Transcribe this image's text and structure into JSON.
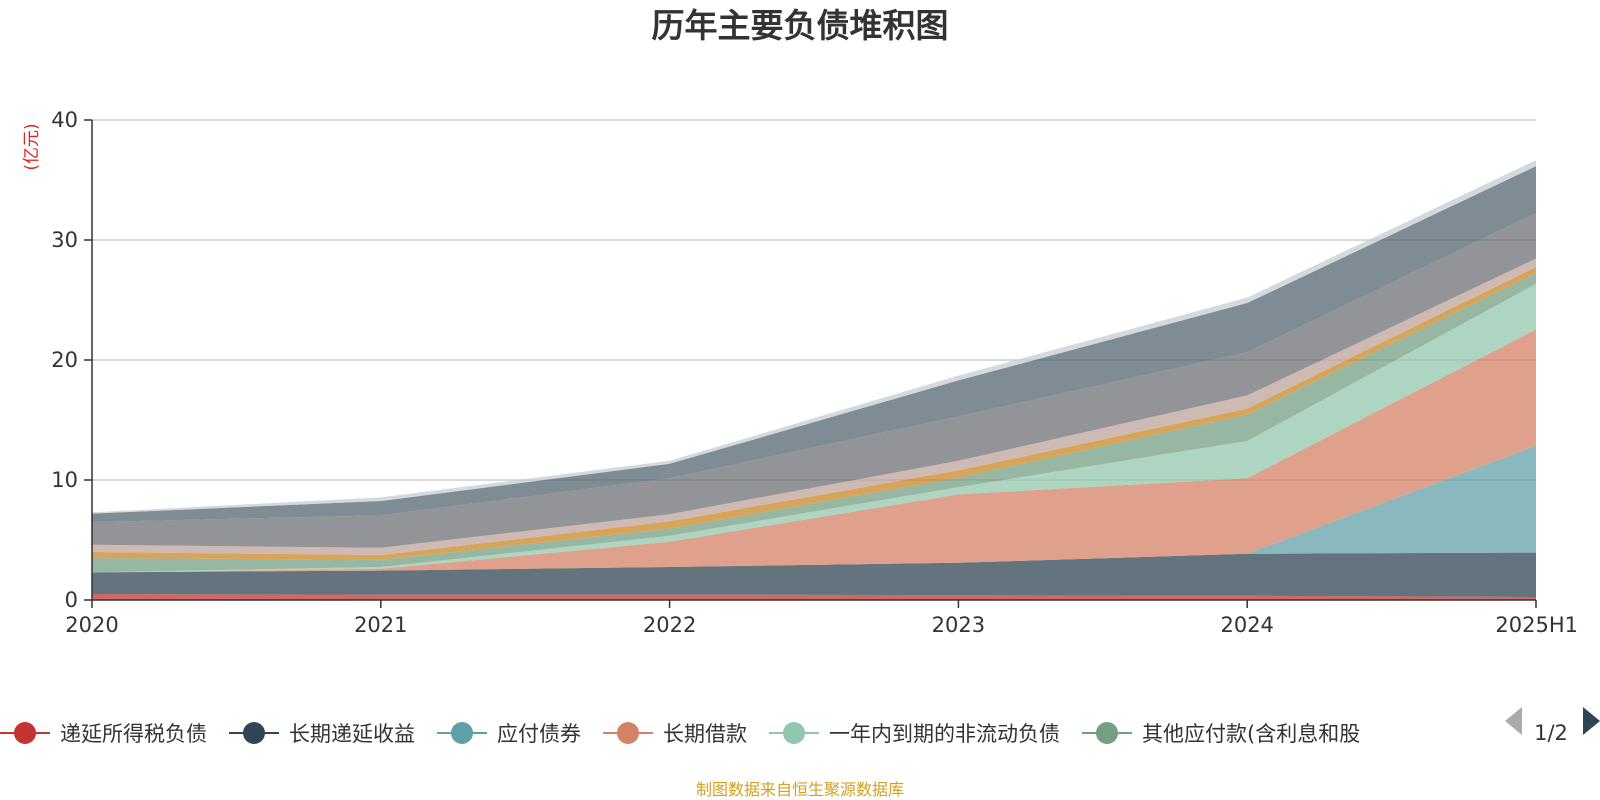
{
  "chart_data": {
    "type": "area",
    "stacked": true,
    "title": "历年主要负债堆积图",
    "ylabel": "(亿元)",
    "xlabel": "",
    "categories": [
      "2020",
      "2021",
      "2022",
      "2023",
      "2024",
      "2025H1"
    ],
    "ylim": [
      0,
      40
    ],
    "yticks": [
      0,
      10,
      20,
      30,
      40
    ],
    "grid": true,
    "series": [
      {
        "name": "递延所得税负债",
        "color": "#c23531",
        "values": [
          0.5,
          0.45,
          0.45,
          0.4,
          0.35,
          0.25
        ]
      },
      {
        "name": "长期递延收益",
        "color": "#2f4554",
        "values": [
          1.8,
          2.0,
          2.3,
          2.7,
          3.5,
          3.7
        ]
      },
      {
        "name": "应付债券",
        "color": "#61a0a8",
        "values": [
          0,
          0,
          0,
          0,
          0,
          8.9
        ]
      },
      {
        "name": "长期借款",
        "color": "#d48265",
        "values": [
          0,
          0.15,
          2.1,
          5.7,
          6.3,
          9.7
        ]
      },
      {
        "name": "一年内到期的非流动负债",
        "color": "#91c7ae",
        "values": [
          0,
          0.15,
          0.5,
          0.6,
          3.1,
          3.8
        ]
      },
      {
        "name": "其他应付款(含利息和股利)",
        "color": "#749f83",
        "values": [
          1.2,
          0.6,
          0.6,
          0.8,
          2.2,
          0.9
        ]
      },
      {
        "name": "",
        "color": "#ca8622",
        "values": [
          0.5,
          0.4,
          0.6,
          0.6,
          0.5,
          0.5
        ]
      },
      {
        "name": "",
        "color": "#bda29a",
        "values": [
          0.6,
          0.6,
          0.6,
          0.8,
          1.1,
          0.7
        ]
      },
      {
        "name": "",
        "color": "#6e7074",
        "values": [
          1.9,
          2.7,
          3.0,
          3.7,
          3.6,
          3.8
        ]
      },
      {
        "name": "",
        "color": "#546570",
        "values": [
          0.7,
          1.2,
          1.2,
          3.0,
          4.1,
          3.9
        ]
      },
      {
        "name": "",
        "color": "#c4ccd3",
        "values": [
          0.1,
          0.3,
          0.25,
          0.4,
          0.45,
          0.5
        ]
      }
    ],
    "legend": {
      "position": "bottom",
      "visible_items": [
        "递延所得税负债",
        "长期递延收益",
        "应付债券",
        "长期借款",
        "一年内到期的非流动负债",
        "其他应付款(含利息和股"
      ],
      "page": "1/2"
    }
  },
  "source_note": "制图数据来自恒生聚源数据库",
  "colors": {
    "grid": "#cccccc",
    "axis": "#333333",
    "pager_inactive": "#aaaaaa",
    "pager_active": "#2f4554"
  }
}
